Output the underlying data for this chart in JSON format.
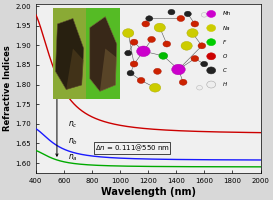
{
  "xlabel": "Wavelength (nm)",
  "ylabel": "Refractive Indices",
  "xlim": [
    400,
    2000
  ],
  "ylim": [
    1.575,
    2.005
  ],
  "yticks": [
    1.6,
    1.65,
    1.7,
    1.75,
    1.8,
    1.85,
    1.9,
    1.95,
    2.0
  ],
  "xticks": [
    400,
    600,
    800,
    1000,
    1200,
    1400,
    1600,
    1800,
    2000
  ],
  "line_nc_color": "#cc0000",
  "line_nb_color": "#1a1aff",
  "line_na_color": "#00aa00",
  "background_color": "#d8d8d8",
  "plot_bg_color": "#f0f0f0",
  "left_inset_bg_left": "#7aaa30",
  "left_inset_bg_right": "#88aa20",
  "crystal_dark": "#2a2010",
  "crystal_highlight": "#7a6030",
  "right_inset_bg": "#f8f8f8",
  "legend_items": [
    {
      "label": "Mn",
      "color": "#cc00cc"
    },
    {
      "label": "Na",
      "color": "#cccc00"
    },
    {
      "label": "F",
      "color": "#00cc00"
    },
    {
      "label": "O",
      "color": "#cc0000"
    },
    {
      "label": "C",
      "color": "#222222"
    },
    {
      "label": "H",
      "color": "#eeeeee"
    }
  ]
}
